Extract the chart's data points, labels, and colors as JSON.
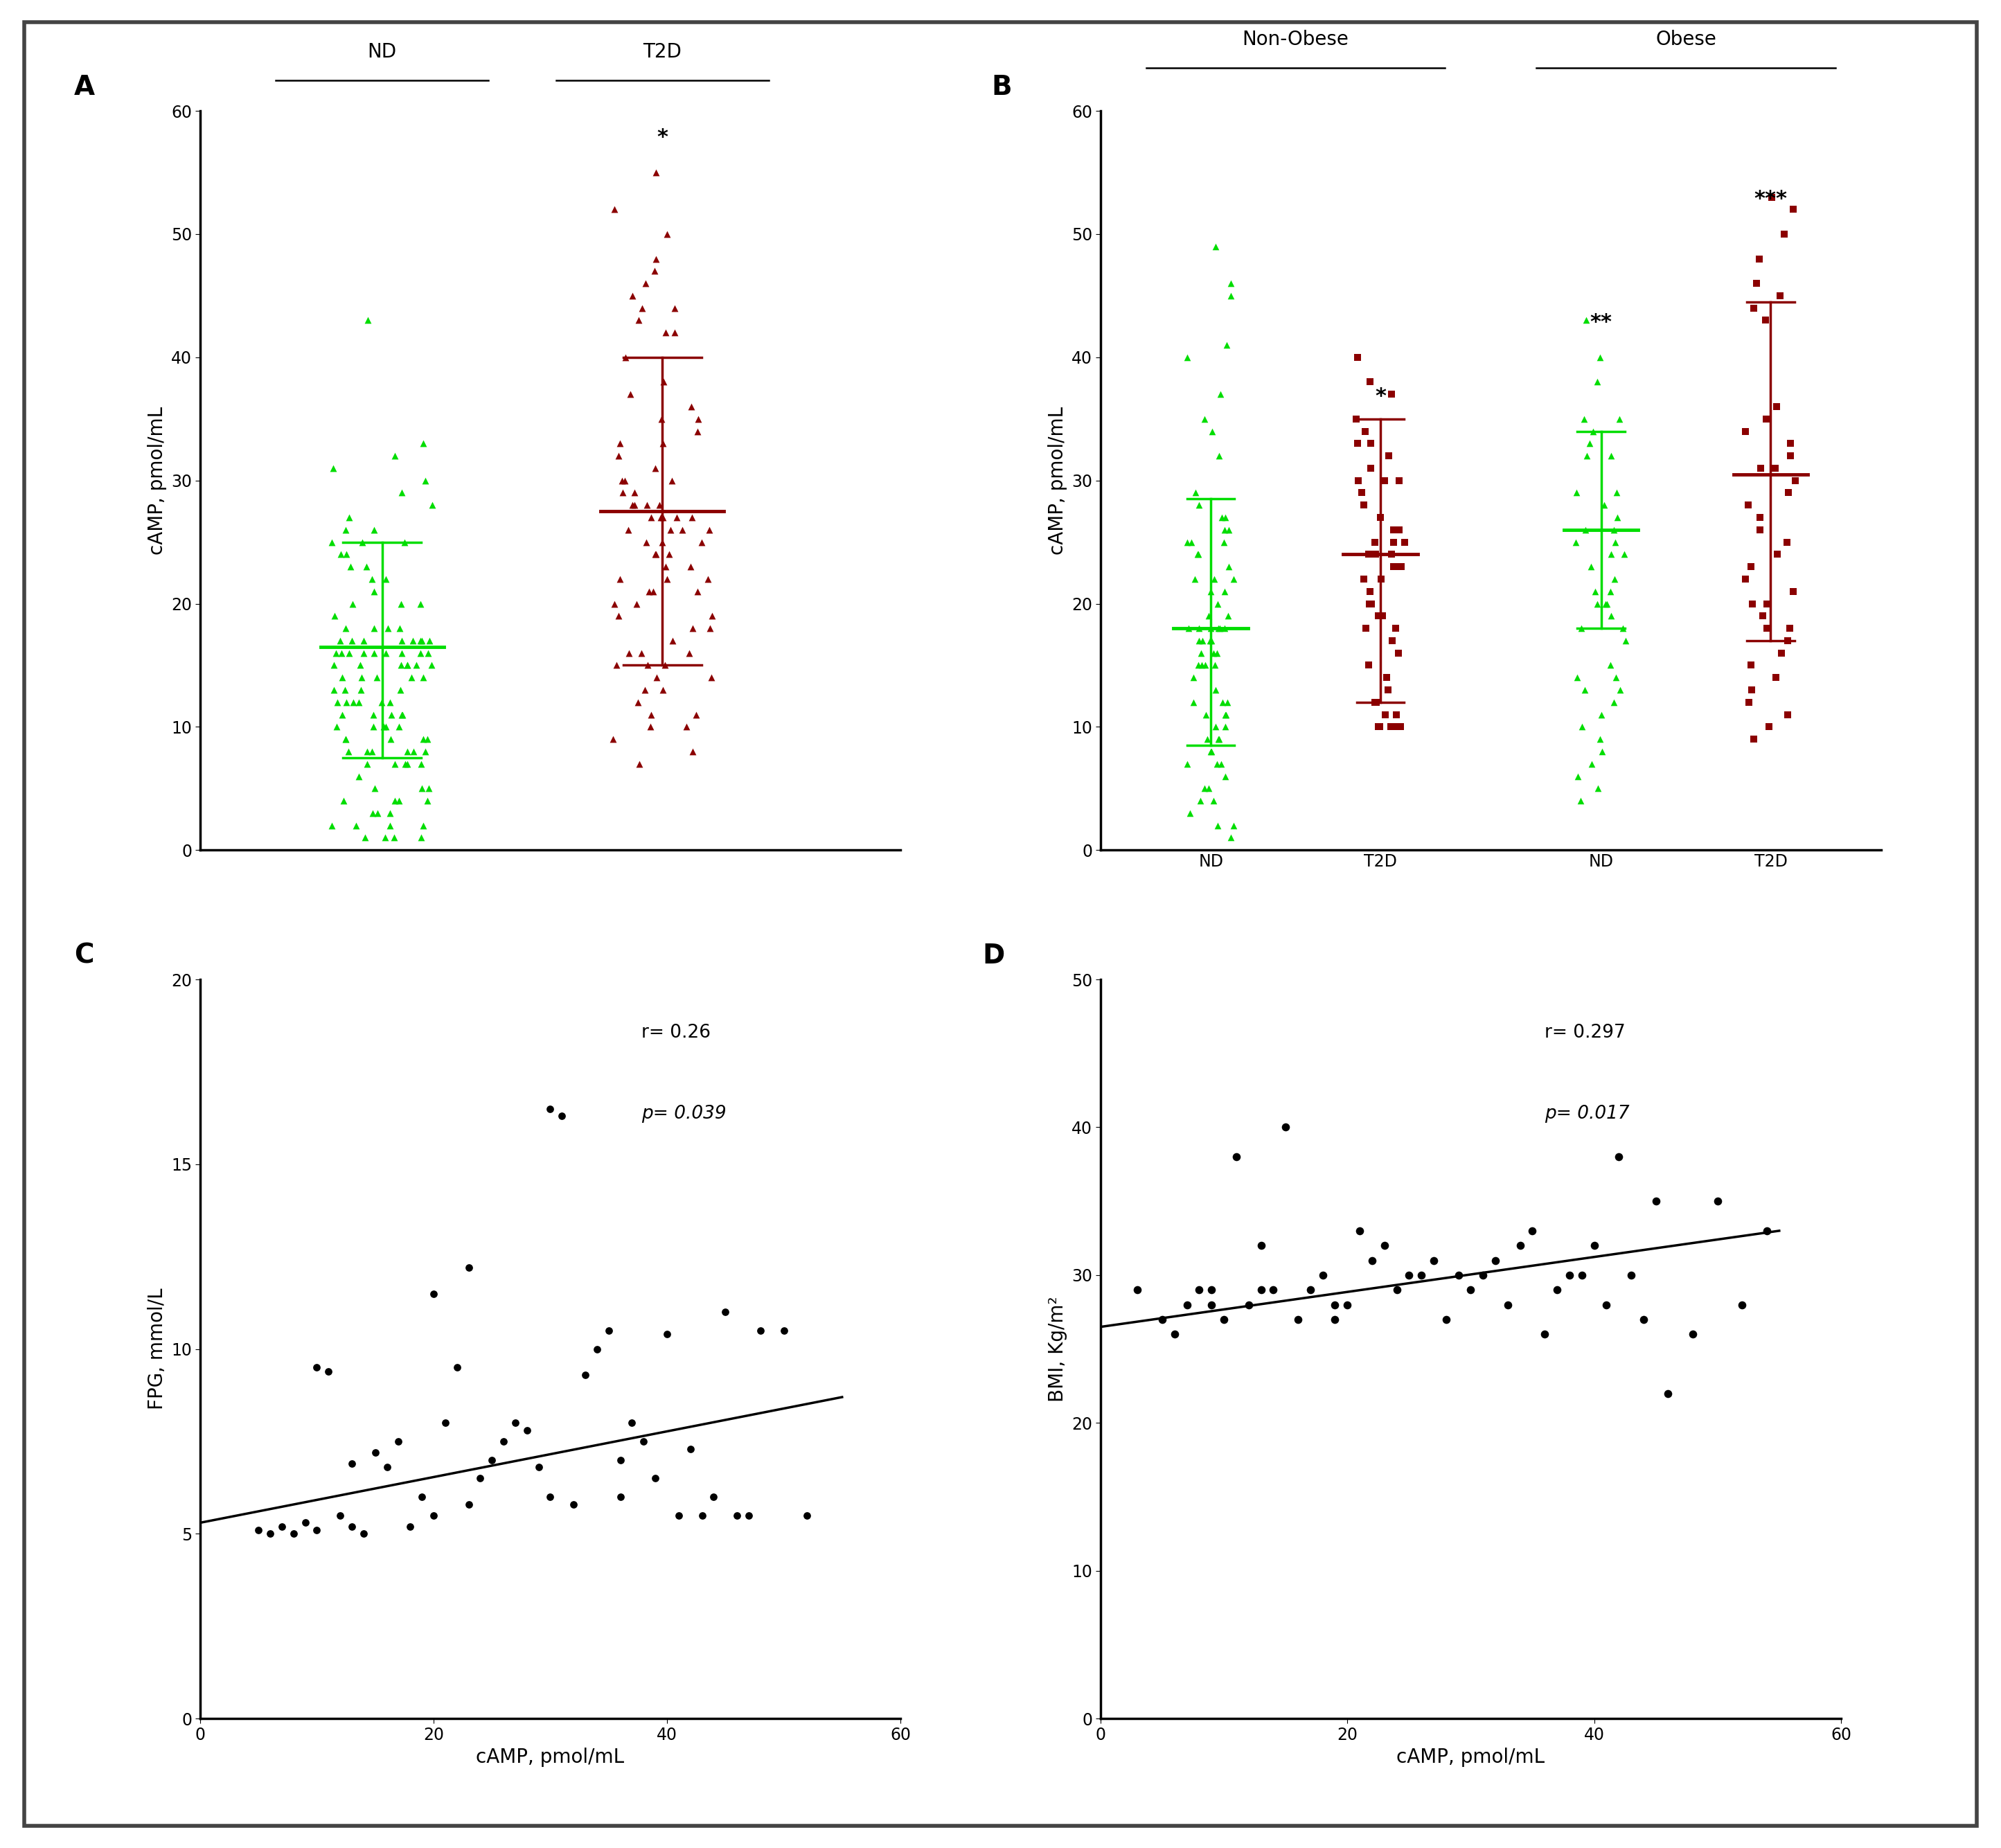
{
  "panel_A": {
    "ylabel": "cAMP, pmol/mL",
    "ylim": [
      0,
      60
    ],
    "yticks": [
      0,
      10,
      20,
      30,
      40,
      50,
      60
    ],
    "group_labels": [
      "ND",
      "T2D"
    ],
    "means": [
      16.5,
      27.5
    ],
    "sd_upper": [
      25.0,
      40.0
    ],
    "sd_lower": [
      7.5,
      15.0
    ],
    "green_color": "#00dd00",
    "dark_red_color": "#8b0000",
    "nd_data": [
      26,
      25,
      25,
      25,
      24,
      24,
      23,
      23,
      22,
      22,
      21,
      20,
      20,
      20,
      19,
      18,
      18,
      18,
      18,
      17,
      17,
      17,
      17,
      17,
      17,
      17,
      17,
      16,
      16,
      16,
      16,
      16,
      16,
      16,
      16,
      16,
      15,
      15,
      15,
      15,
      15,
      15,
      15,
      14,
      14,
      14,
      14,
      14,
      13,
      13,
      13,
      13,
      12,
      12,
      12,
      12,
      12,
      12,
      11,
      11,
      11,
      11,
      11,
      10,
      10,
      10,
      10,
      10,
      9,
      9,
      9,
      9,
      9,
      8,
      8,
      8,
      8,
      8,
      8,
      7,
      7,
      7,
      7,
      7,
      6,
      5,
      5,
      5,
      4,
      4,
      4,
      4,
      3,
      3,
      3,
      2,
      2,
      2,
      2,
      1,
      1,
      1,
      1,
      43,
      33,
      32,
      31,
      30,
      29,
      28,
      27,
      26
    ],
    "t2d_data": [
      55,
      52,
      50,
      48,
      47,
      46,
      45,
      44,
      44,
      43,
      42,
      42,
      40,
      38,
      37,
      36,
      35,
      35,
      34,
      33,
      33,
      32,
      31,
      30,
      30,
      30,
      29,
      29,
      28,
      28,
      28,
      28,
      27,
      27,
      27,
      27,
      27,
      26,
      26,
      26,
      26,
      25,
      25,
      25,
      24,
      24,
      24,
      23,
      23,
      22,
      22,
      22,
      21,
      21,
      21,
      20,
      20,
      19,
      19,
      18,
      18,
      17,
      16,
      16,
      16,
      15,
      15,
      15,
      14,
      14,
      13,
      13,
      12,
      11,
      11,
      10,
      10,
      9,
      8,
      7
    ]
  },
  "panel_B": {
    "ylabel": "cAMP, pmol/mL",
    "ylim": [
      0,
      60
    ],
    "yticks": [
      0,
      10,
      20,
      30,
      40,
      50,
      60
    ],
    "group_labels": [
      "ND",
      "T2D",
      "ND",
      "T2D"
    ],
    "green_color": "#00dd00",
    "dark_red_color": "#8b0000",
    "means": [
      18.0,
      24.0,
      26.0,
      30.5
    ],
    "sd_upper": [
      28.5,
      35.0,
      34.0,
      44.5
    ],
    "sd_lower": [
      8.5,
      12.0,
      18.0,
      17.0
    ],
    "non_obese_nd": [
      49,
      46,
      45,
      41,
      40,
      37,
      35,
      34,
      32,
      29,
      28,
      27,
      27,
      26,
      26,
      25,
      25,
      25,
      24,
      24,
      23,
      22,
      22,
      22,
      21,
      21,
      20,
      19,
      19,
      18,
      18,
      18,
      18,
      18,
      18,
      17,
      17,
      17,
      17,
      16,
      16,
      16,
      15,
      15,
      15,
      15,
      14,
      13,
      12,
      12,
      12,
      11,
      11,
      11,
      10,
      10,
      9,
      9,
      9,
      8,
      8,
      7,
      7,
      7,
      6,
      5,
      5,
      4,
      4,
      3,
      2,
      2,
      1
    ],
    "non_obese_t2d": [
      40,
      38,
      37,
      35,
      34,
      33,
      33,
      32,
      31,
      30,
      30,
      30,
      29,
      28,
      27,
      26,
      26,
      25,
      25,
      25,
      24,
      24,
      24,
      23,
      23,
      23,
      22,
      22,
      21,
      20,
      20,
      19,
      19,
      18,
      18,
      17,
      16,
      15,
      14,
      13,
      12,
      12,
      11,
      11,
      10,
      10,
      10,
      10,
      10,
      10,
      10,
      10
    ],
    "obese_nd": [
      43,
      40,
      38,
      35,
      35,
      34,
      33,
      32,
      32,
      29,
      29,
      28,
      27,
      26,
      26,
      25,
      25,
      24,
      24,
      23,
      22,
      21,
      21,
      20,
      20,
      20,
      19,
      18,
      18,
      17,
      15,
      14,
      14,
      13,
      13,
      12,
      11,
      10,
      9,
      8,
      7,
      6,
      5,
      4
    ],
    "obese_t2d": [
      53,
      52,
      50,
      48,
      46,
      45,
      44,
      43,
      36,
      35,
      34,
      33,
      32,
      31,
      31,
      30,
      29,
      28,
      27,
      26,
      25,
      24,
      23,
      22,
      21,
      20,
      20,
      19,
      18,
      18,
      17,
      16,
      15,
      14,
      13,
      12,
      11,
      10,
      9
    ]
  },
  "panel_C": {
    "xlabel": "cAMP, pmol/mL",
    "ylabel": "FPG, mmol/L",
    "xlim": [
      0,
      60
    ],
    "ylim": [
      0,
      20
    ],
    "xticks": [
      0,
      20,
      40,
      60
    ],
    "yticks": [
      0,
      5,
      10,
      15,
      20
    ],
    "r_text": "r= 0.26",
    "p_text": "p= 0.039",
    "x_data": [
      5,
      6,
      7,
      8,
      9,
      10,
      10,
      11,
      12,
      13,
      13,
      14,
      15,
      16,
      17,
      18,
      19,
      20,
      20,
      21,
      22,
      23,
      23,
      24,
      25,
      26,
      27,
      28,
      29,
      30,
      30,
      31,
      32,
      33,
      34,
      35,
      36,
      36,
      37,
      38,
      39,
      40,
      41,
      42,
      43,
      44,
      45,
      46,
      47,
      48,
      50,
      52
    ],
    "y_data": [
      5.1,
      5.0,
      5.2,
      5.0,
      5.3,
      9.5,
      5.1,
      9.4,
      5.5,
      6.9,
      5.2,
      5.0,
      7.2,
      6.8,
      7.5,
      5.2,
      6.0,
      11.5,
      5.5,
      8.0,
      9.5,
      12.2,
      5.8,
      6.5,
      7.0,
      7.5,
      8.0,
      7.8,
      6.8,
      16.5,
      6.0,
      16.3,
      5.8,
      9.3,
      10.0,
      10.5,
      7.0,
      6.0,
      8.0,
      7.5,
      6.5,
      10.4,
      5.5,
      7.3,
      5.5,
      6.0,
      11.0,
      5.5,
      5.5,
      10.5,
      10.5,
      5.5
    ],
    "fit_x": [
      0,
      55
    ],
    "fit_y": [
      5.3,
      8.7
    ]
  },
  "panel_D": {
    "xlabel": "cAMP, pmol/mL",
    "ylabel": "BMI, Kg/m²",
    "xlim": [
      0,
      60
    ],
    "ylim": [
      0,
      50
    ],
    "xticks": [
      0,
      20,
      40,
      60
    ],
    "yticks": [
      0,
      10,
      20,
      30,
      40,
      50
    ],
    "r_text": "r= 0.297",
    "p_text": "p= 0.017",
    "x_data": [
      3,
      5,
      6,
      7,
      8,
      9,
      9,
      10,
      11,
      12,
      13,
      13,
      14,
      15,
      16,
      17,
      18,
      19,
      19,
      20,
      21,
      22,
      23,
      24,
      25,
      26,
      27,
      28,
      29,
      30,
      31,
      32,
      33,
      34,
      35,
      36,
      37,
      38,
      39,
      40,
      41,
      42,
      43,
      44,
      45,
      46,
      48,
      50,
      52,
      54
    ],
    "y_data": [
      29,
      27,
      26,
      28,
      29,
      28,
      29,
      27,
      38,
      28,
      32,
      29,
      29,
      40,
      27,
      29,
      30,
      28,
      27,
      28,
      33,
      31,
      32,
      29,
      30,
      30,
      31,
      27,
      30,
      29,
      30,
      31,
      28,
      32,
      33,
      26,
      29,
      30,
      30,
      32,
      28,
      38,
      30,
      27,
      35,
      22,
      26,
      35,
      28,
      33
    ],
    "fit_x": [
      0,
      55
    ],
    "fit_y": [
      26.5,
      33.0
    ]
  },
  "background_color": "#ffffff",
  "border_color": "#444444",
  "font_size_label": 20,
  "font_size_tick": 17,
  "font_size_panel": 28,
  "font_size_header": 20,
  "font_size_star": 22,
  "font_size_annot": 19
}
